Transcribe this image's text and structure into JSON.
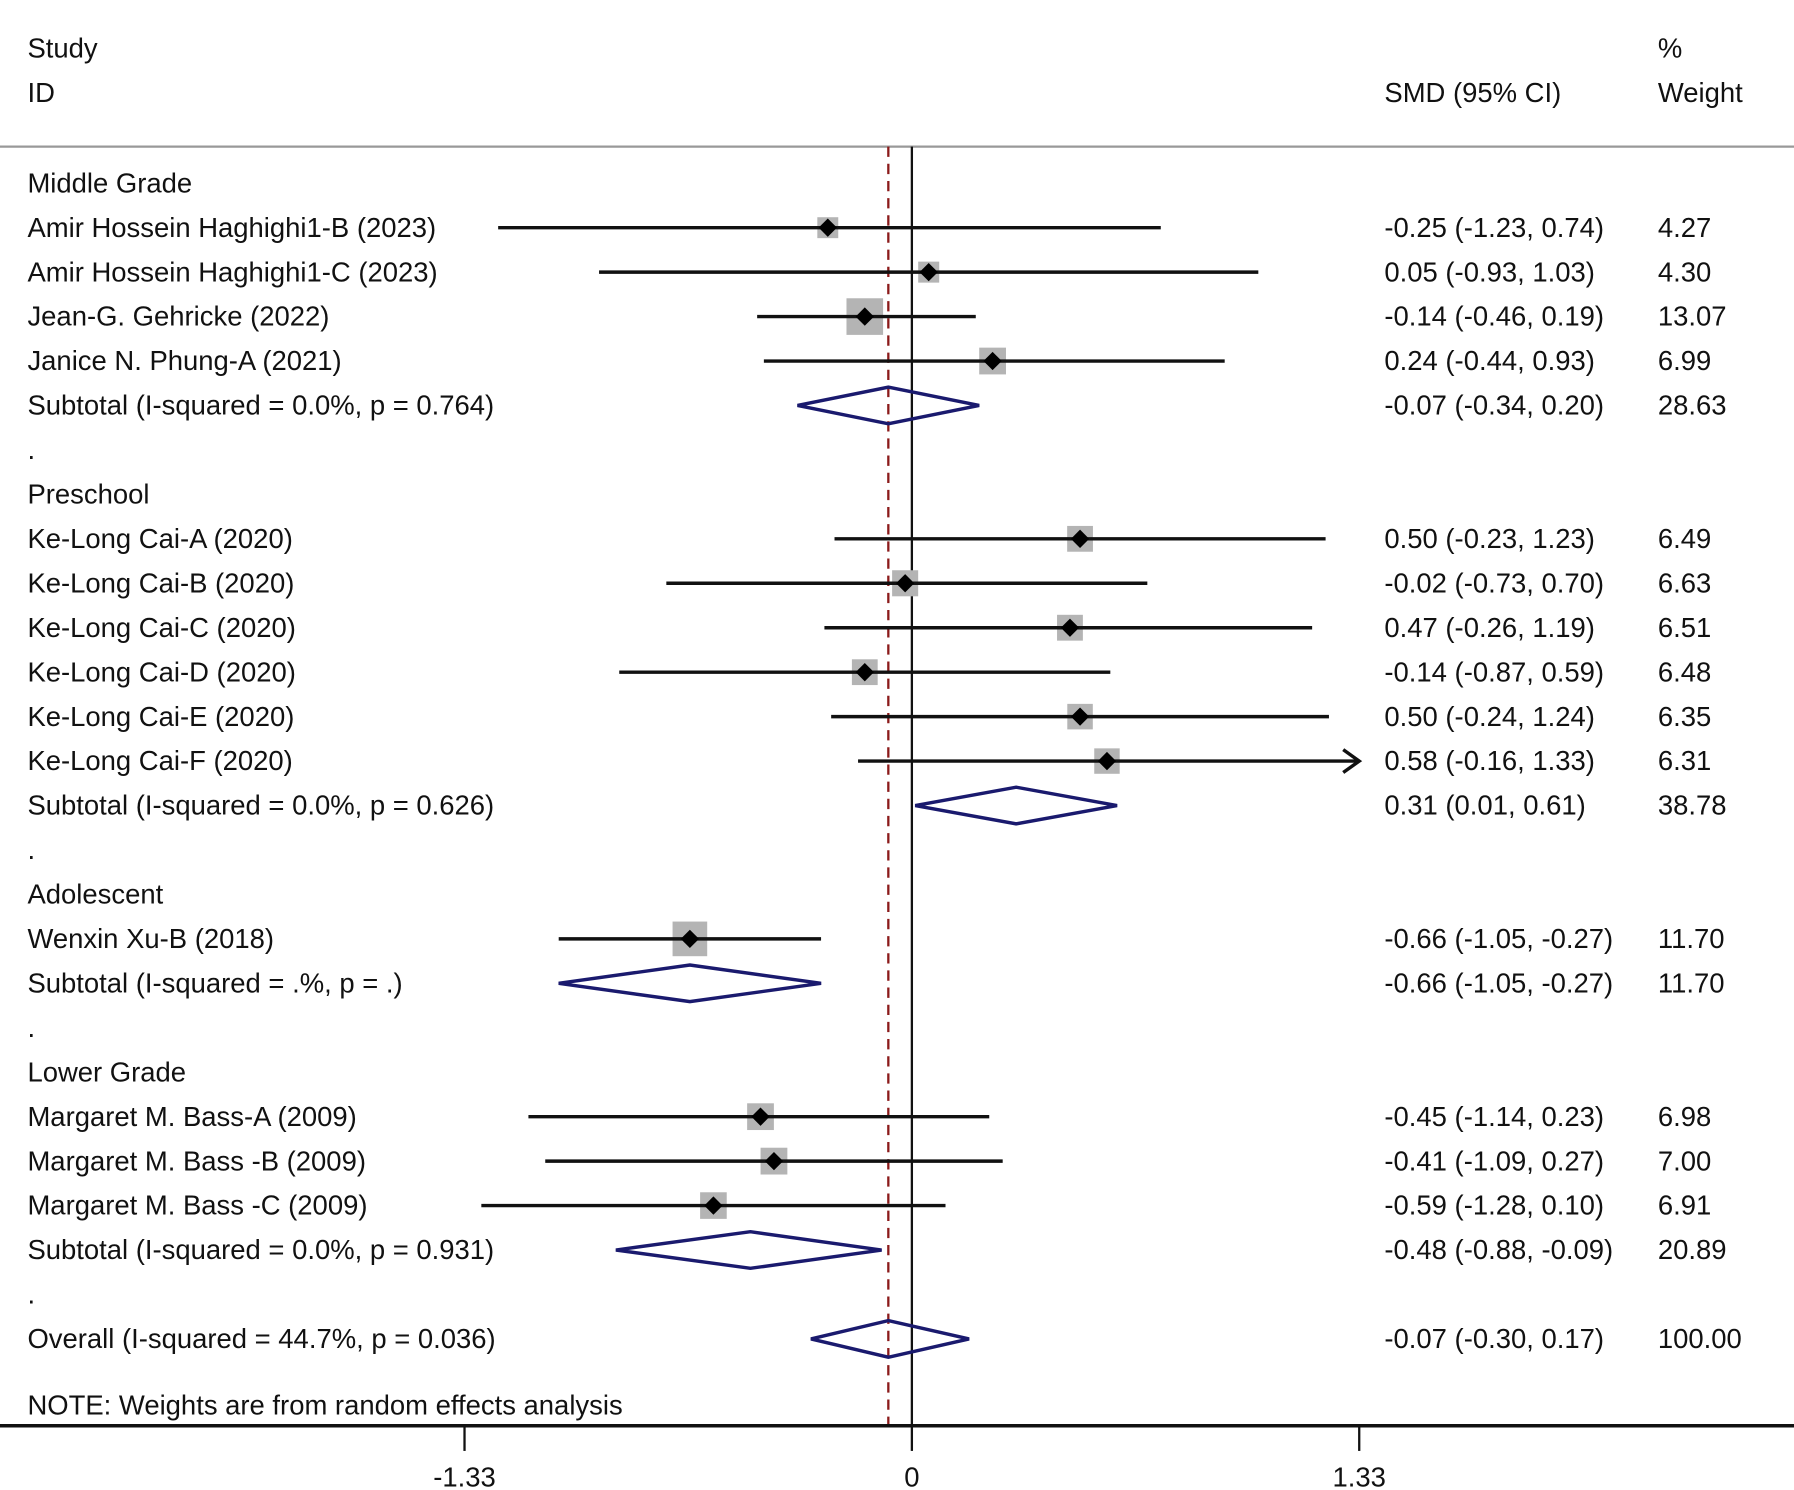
{
  "chart_data": {
    "type": "forest",
    "header": {
      "study": "Study",
      "id": "ID",
      "effect": "SMD (95% CI)",
      "weight_pct": "%",
      "weight": "Weight"
    },
    "xaxis": {
      "ticks": [
        -1.33,
        0,
        1.33
      ],
      "tick_labels": [
        "-1.33",
        "0",
        "1.33"
      ],
      "range": [
        -1.33,
        1.33
      ]
    },
    "overall_effect_line": -0.07,
    "note": "NOTE: Weights are from random effects analysis",
    "colors": {
      "diamond": "#1a1a6e",
      "ref_line": "#8b1a1a",
      "box": "#b4b4b4"
    },
    "rows": [
      {
        "type": "group",
        "label": "Middle Grade"
      },
      {
        "type": "study",
        "label": "Amir Hossein Haghighi1-B (2023)",
        "es": -0.25,
        "lo": -1.23,
        "hi": 0.74,
        "text": "-0.25 (-1.23, 0.74)",
        "weight": "4.27"
      },
      {
        "type": "study",
        "label": "Amir Hossein Haghighi1-C (2023)",
        "es": 0.05,
        "lo": -0.93,
        "hi": 1.03,
        "text": "0.05 (-0.93, 1.03)",
        "weight": "4.30"
      },
      {
        "type": "study",
        "label": "Jean-G. Gehricke (2022)",
        "es": -0.14,
        "lo": -0.46,
        "hi": 0.19,
        "text": "-0.14 (-0.46, 0.19)",
        "weight": "13.07"
      },
      {
        "type": "study",
        "label": "Janice N. Phung-A (2021)",
        "es": 0.24,
        "lo": -0.44,
        "hi": 0.93,
        "text": "0.24 (-0.44, 0.93)",
        "weight": "6.99"
      },
      {
        "type": "subtotal",
        "label": "Subtotal  (I-squared = 0.0%, p = 0.764)",
        "es": -0.07,
        "lo": -0.34,
        "hi": 0.2,
        "text": "-0.07 (-0.34, 0.20)",
        "weight": "28.63"
      },
      {
        "type": "spacer",
        "label": "."
      },
      {
        "type": "group",
        "label": "Preschool"
      },
      {
        "type": "study",
        "label": "Ke-Long Cai-A (2020)",
        "es": 0.5,
        "lo": -0.23,
        "hi": 1.23,
        "text": "0.50 (-0.23, 1.23)",
        "weight": "6.49"
      },
      {
        "type": "study",
        "label": "Ke-Long Cai-B (2020)",
        "es": -0.02,
        "lo": -0.73,
        "hi": 0.7,
        "text": "-0.02 (-0.73, 0.70)",
        "weight": "6.63"
      },
      {
        "type": "study",
        "label": "Ke-Long Cai-C (2020)",
        "es": 0.47,
        "lo": -0.26,
        "hi": 1.19,
        "text": "0.47 (-0.26, 1.19)",
        "weight": "6.51"
      },
      {
        "type": "study",
        "label": "Ke-Long Cai-D (2020)",
        "es": -0.14,
        "lo": -0.87,
        "hi": 0.59,
        "text": "-0.14 (-0.87, 0.59)",
        "weight": "6.48"
      },
      {
        "type": "study",
        "label": "Ke-Long Cai-E (2020)",
        "es": 0.5,
        "lo": -0.24,
        "hi": 1.24,
        "text": "0.50 (-0.24, 1.24)",
        "weight": "6.35"
      },
      {
        "type": "study",
        "label": "Ke-Long Cai-F (2020)",
        "es": 0.58,
        "lo": -0.16,
        "hi": 1.33,
        "text": "0.58 (-0.16, 1.33)",
        "weight": "6.31",
        "arrow": true
      },
      {
        "type": "subtotal",
        "label": "Subtotal  (I-squared = 0.0%, p = 0.626)",
        "es": 0.31,
        "lo": 0.01,
        "hi": 0.61,
        "text": "0.31 (0.01, 0.61)",
        "weight": "38.78"
      },
      {
        "type": "spacer",
        "label": "."
      },
      {
        "type": "group",
        "label": "Adolescent"
      },
      {
        "type": "study",
        "label": "Wenxin Xu-B (2018)",
        "es": -0.66,
        "lo": -1.05,
        "hi": -0.27,
        "text": "-0.66 (-1.05, -0.27)",
        "weight": "11.70"
      },
      {
        "type": "subtotal",
        "label": "Subtotal  (I-squared = .%, p = .)",
        "es": -0.66,
        "lo": -1.05,
        "hi": -0.27,
        "text": "-0.66 (-1.05, -0.27)",
        "weight": "11.70"
      },
      {
        "type": "spacer",
        "label": "."
      },
      {
        "type": "group",
        "label": "Lower Grade"
      },
      {
        "type": "study",
        "label": "Margaret M. Bass-A (2009)",
        "es": -0.45,
        "lo": -1.14,
        "hi": 0.23,
        "text": "-0.45 (-1.14, 0.23)",
        "weight": "6.98"
      },
      {
        "type": "study",
        "label": "Margaret M. Bass -B (2009)",
        "es": -0.41,
        "lo": -1.09,
        "hi": 0.27,
        "text": "-0.41 (-1.09, 0.27)",
        "weight": "7.00"
      },
      {
        "type": "study",
        "label": "Margaret M. Bass -C (2009)",
        "es": -0.59,
        "lo": -1.28,
        "hi": 0.1,
        "text": "-0.59 (-1.28, 0.10)",
        "weight": "6.91"
      },
      {
        "type": "subtotal",
        "label": "Subtotal  (I-squared = 0.0%, p = 0.931)",
        "es": -0.48,
        "lo": -0.88,
        "hi": -0.09,
        "text": "-0.48 (-0.88, -0.09)",
        "weight": "20.89"
      },
      {
        "type": "spacer",
        "label": "."
      },
      {
        "type": "overall",
        "label": "Overall  (I-squared = 44.7%, p = 0.036)",
        "es": -0.07,
        "lo": -0.3,
        "hi": 0.17,
        "text": "-0.07 (-0.30, 0.17)",
        "weight": "100.00"
      }
    ]
  }
}
